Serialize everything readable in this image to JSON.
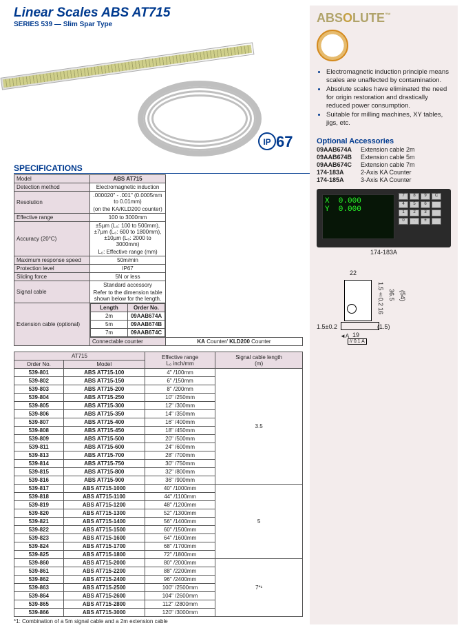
{
  "title": "Linear Scales ABS AT715",
  "series": "SERIES 539 — Slim Spar Type",
  "ip67": {
    "ip": "IP",
    "num": "67"
  },
  "spec_heading": "SPECIFICATIONS",
  "spec": {
    "model_label": "Model",
    "model": "ABS AT715",
    "detect_label": "Detection method",
    "detect": "Electromagnetic induction",
    "res_label": "Resolution",
    "res": ".000020\" - .001\" (0.0005mm to 0.01mm)",
    "res2": "(on the KA/KLD200 counter)",
    "range_label": "Effective range",
    "range": "100 to 3000mm",
    "acc_label": "Accuracy (20°C)",
    "acc": "±5µm (L₀: 100 to 500mm), ±7µm (L₀: 600 to 1800mm), ±10µm (L₀: 2000 to 3000mm)",
    "acc2": "L₀: Effective range (mm)",
    "speed_label": "Maximum response speed",
    "speed": "50m/min",
    "prot_label": "Protection level",
    "prot": "IP67",
    "slide_label": "Sliding force",
    "slide": "5N or less",
    "sig_label": "Signal cable",
    "sig": "Standard accessory",
    "sig2": "Refer to the dimension table shown below for the length.",
    "ext_label": "Extension cable (optional)",
    "ext_head_len": "Length",
    "ext_head_ord": "Order No.",
    "ext_rows": [
      [
        "2m",
        "09AAB674A"
      ],
      [
        "5m",
        "09AAB674B"
      ],
      [
        "7m",
        "09AAB674C"
      ]
    ],
    "conn_label": "Connectable counter",
    "conn": "KA Counter/ KLD200 Counter"
  },
  "models": {
    "head_group": "AT715",
    "cols": [
      "Order No.",
      "Model",
      "Effective range\nL₀ inch/mm",
      "Signal cable length\n(m)"
    ],
    "group1_cable": "3.5",
    "group2_cable": "5",
    "group3_cable": "7*¹",
    "footnote": "*1: Combination of a 5m signal cable and a 2m extension cable",
    "rows1": [
      [
        "539-801",
        "ABS AT715-100",
        "4\" /100mm"
      ],
      [
        "539-802",
        "ABS AT715-150",
        "6\" /150mm"
      ],
      [
        "539-803",
        "ABS AT715-200",
        "8\" /200mm"
      ],
      [
        "539-804",
        "ABS AT715-250",
        "10\" /250mm"
      ],
      [
        "539-805",
        "ABS AT715-300",
        "12\" /300mm"
      ],
      [
        "539-806",
        "ABS AT715-350",
        "14\" /350mm"
      ],
      [
        "539-807",
        "ABS AT715-400",
        "16\" /400mm"
      ],
      [
        "539-808",
        "ABS AT715-450",
        "18\" /450mm"
      ],
      [
        "539-809",
        "ABS AT715-500",
        "20\" /500mm"
      ],
      [
        "539-811",
        "ABS AT715-600",
        "24\" /600mm"
      ],
      [
        "539-813",
        "ABS AT715-700",
        "28\" /700mm"
      ],
      [
        "539-814",
        "ABS AT715-750",
        "30\" /750mm"
      ],
      [
        "539-815",
        "ABS AT715-800",
        "32\" /800mm"
      ],
      [
        "539-816",
        "ABS AT715-900",
        "36\" /900mm"
      ]
    ],
    "rows2": [
      [
        "539-817",
        "ABS AT715-1000",
        "40\" /1000mm"
      ],
      [
        "539-818",
        "ABS AT715-1100",
        "44\" /1100mm"
      ],
      [
        "539-819",
        "ABS AT715-1200",
        "48\" /1200mm"
      ],
      [
        "539-820",
        "ABS AT715-1300",
        "52\" /1300mm"
      ],
      [
        "539-821",
        "ABS AT715-1400",
        "56\" /1400mm"
      ],
      [
        "539-822",
        "ABS AT715-1500",
        "60\" /1500mm"
      ],
      [
        "539-823",
        "ABS AT715-1600",
        "64\" /1600mm"
      ],
      [
        "539-824",
        "ABS AT715-1700",
        "68\" /1700mm"
      ],
      [
        "539-825",
        "ABS AT715-1800",
        "72\" /1800mm"
      ]
    ],
    "rows3": [
      [
        "539-860",
        "ABS AT715-2000",
        "80\" /2000mm"
      ],
      [
        "539-861",
        "ABS AT715-2200",
        "88\" /2200mm"
      ],
      [
        "539-862",
        "ABS AT715-2400",
        "96\" /2400mm"
      ],
      [
        "539-863",
        "ABS AT715-2500",
        "100\" /2500mm"
      ],
      [
        "539-864",
        "ABS AT715-2600",
        "104\" /2600mm"
      ],
      [
        "539-865",
        "ABS AT715-2800",
        "112\" /2800mm"
      ],
      [
        "539-866",
        "ABS AT715-3000",
        "120\" /3000mm"
      ]
    ]
  },
  "right": {
    "logo": "ABSOLUTE",
    "logo_tm": "™",
    "bullets": [
      "Electromagnetic induction principle means scales are unaffected by contamination.",
      "Absolute scales have eliminated the need for origin restoration and drastically reduced power consumption.",
      "Suitable for milling machines, XY tables, jigs, etc."
    ],
    "opt_head": "Optional Accessories",
    "opts": [
      [
        "09AAB674A",
        "Extension cable 2m"
      ],
      [
        "09AAB674B",
        "Extension cable 5m"
      ],
      [
        "09AAB674C",
        "Extension cable 7m"
      ],
      [
        "174-183A",
        "2-Axis KA Counter"
      ],
      [
        "174-185A",
        "3-Axis KA Counter"
      ]
    ],
    "counter_label": "174-183A",
    "dims": {
      "d22": "22",
      "d15p": "1.5±0.2",
      "d365": "36.5",
      "d54": "(54)",
      "d16": "16",
      "d15": "(1.5)",
      "d15h": "1.5±0.2",
      "d19": "19",
      "da": "// 0.1 A",
      "dA": "A"
    }
  }
}
